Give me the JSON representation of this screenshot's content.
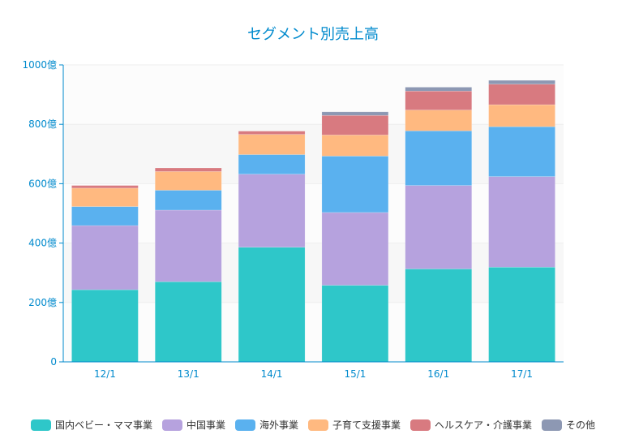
{
  "chart_data": {
    "type": "bar",
    "stacked": true,
    "title": "セグメント別売上高",
    "categories": [
      "12/1",
      "13/1",
      "14/1",
      "15/1",
      "16/1",
      "17/1"
    ],
    "ylim": [
      0,
      1000
    ],
    "yticks": [
      0,
      200,
      400,
      600,
      800,
      1000
    ],
    "ytick_labels": [
      "0",
      "200億",
      "400億",
      "600億",
      "800億",
      "1000億"
    ],
    "series": [
      {
        "name": "国内ベビー・ママ事業",
        "color": "#2ec7c9",
        "values": [
          243,
          270,
          386,
          258,
          313,
          319
        ]
      },
      {
        "name": "中国事業",
        "color": "#b6a2de",
        "values": [
          216,
          241,
          246,
          245,
          281,
          305
        ]
      },
      {
        "name": "海外事業",
        "color": "#5ab1ef",
        "values": [
          64,
          67,
          66,
          190,
          184,
          168
        ]
      },
      {
        "name": "子育て支援事業",
        "color": "#ffb980",
        "values": [
          62,
          63,
          68,
          71,
          70,
          74
        ]
      },
      {
        "name": "ヘルスケア・介護事業",
        "color": "#d87a80",
        "values": [
          9,
          12,
          11,
          66,
          64,
          69
        ]
      },
      {
        "name": "その他",
        "color": "#8d98b3",
        "values": [
          0,
          0,
          0,
          12,
          13,
          13
        ]
      }
    ],
    "legend_position": "bottom"
  }
}
